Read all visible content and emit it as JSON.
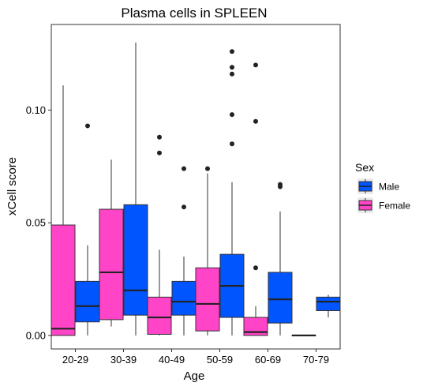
{
  "chart_data": {
    "type": "box",
    "title": "Plasma cells in SPLEEN",
    "xlabel": "Age",
    "ylabel": "xCell score",
    "ylim": [
      -0.006,
      0.138
    ],
    "grid": false,
    "legend_position": "right",
    "legend_title": "Sex",
    "y_ticks": [
      {
        "value": 0.0,
        "label": "0.00"
      },
      {
        "value": 0.05,
        "label": "0.05"
      },
      {
        "value": 0.1,
        "label": "0.10"
      }
    ],
    "categories": [
      "20-29",
      "30-39",
      "40-49",
      "50-59",
      "60-69",
      "70-79"
    ],
    "series": [
      {
        "name": "Female",
        "color": "#FF44C8",
        "boxes": [
          {
            "category": "20-29",
            "min": 0.0,
            "q1": 0.0,
            "median": 0.003,
            "q3": 0.049,
            "max": 0.111,
            "outliers": []
          },
          {
            "category": "30-39",
            "min": 0.004,
            "q1": 0.007,
            "median": 0.028,
            "q3": 0.056,
            "max": 0.078,
            "outliers": []
          },
          {
            "category": "40-49",
            "min": 0.0,
            "q1": 0.0005,
            "median": 0.008,
            "q3": 0.017,
            "max": 0.038,
            "outliers": [
              0.081,
              0.088
            ]
          },
          {
            "category": "50-59",
            "min": 0.0,
            "q1": 0.002,
            "median": 0.014,
            "q3": 0.03,
            "max": 0.072,
            "outliers": [
              0.074
            ]
          },
          {
            "category": "60-69",
            "min": 0.0,
            "q1": 0.0,
            "median": 0.0015,
            "q3": 0.008,
            "max": 0.013,
            "outliers": [
              0.03,
              0.095,
              0.12
            ]
          },
          {
            "category": "70-79",
            "min": 0.0,
            "q1": 0.0,
            "median": 0.0,
            "q3": 0.0,
            "max": 0.0,
            "outliers": []
          }
        ]
      },
      {
        "name": "Male",
        "color": "#0055FF",
        "boxes": [
          {
            "category": "20-29",
            "min": 0.0,
            "q1": 0.006,
            "median": 0.013,
            "q3": 0.024,
            "max": 0.04,
            "outliers": [
              0.093
            ]
          },
          {
            "category": "30-39",
            "min": 0.0,
            "q1": 0.009,
            "median": 0.02,
            "q3": 0.058,
            "max": 0.13,
            "outliers": []
          },
          {
            "category": "40-49",
            "min": 0.0,
            "q1": 0.009,
            "median": 0.015,
            "q3": 0.024,
            "max": 0.035,
            "outliers": [
              0.057,
              0.074
            ]
          },
          {
            "category": "50-59",
            "min": 0.0,
            "q1": 0.008,
            "median": 0.022,
            "q3": 0.036,
            "max": 0.068,
            "outliers": [
              0.085,
              0.098,
              0.116,
              0.119,
              0.126
            ]
          },
          {
            "category": "60-69",
            "min": 0.0,
            "q1": 0.0055,
            "median": 0.016,
            "q3": 0.028,
            "max": 0.055,
            "outliers": [
              0.066,
              0.067
            ]
          },
          {
            "category": "70-79",
            "min": 0.008,
            "q1": 0.011,
            "median": 0.015,
            "q3": 0.017,
            "max": 0.018,
            "outliers": []
          }
        ]
      }
    ],
    "legend": [
      {
        "name": "Male",
        "color": "#0055FF"
      },
      {
        "name": "Female",
        "color": "#FF44C8"
      }
    ]
  }
}
